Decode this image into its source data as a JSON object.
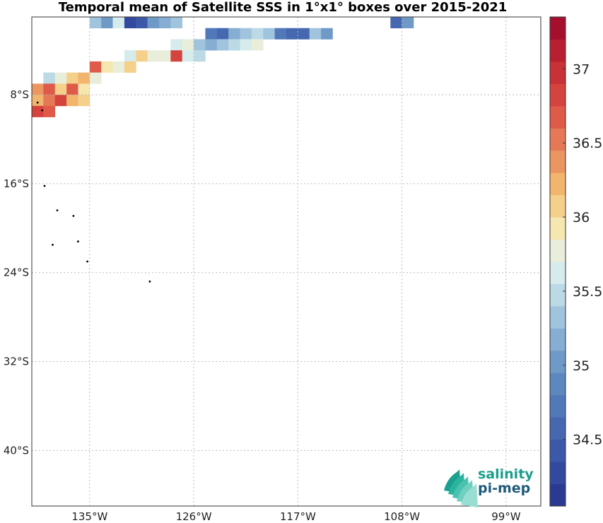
{
  "title": "Temporal mean of Satellite SSS in 1°x1° boxes over 2015-2021",
  "logo": {
    "line1": "salinity",
    "line2": "pi-mep"
  },
  "chart_data": {
    "type": "heatmap",
    "title": "Temporal mean of Satellite SSS in 1°x1° boxes over 2015-2021",
    "xlabel": "",
    "ylabel": "",
    "x_ticks": [
      "135°W",
      "126°W",
      "117°W",
      "108°W",
      "99°W"
    ],
    "y_ticks": [
      "8°S",
      "16°S",
      "24°S",
      "32°S",
      "40°S"
    ],
    "xlim": [
      -140,
      -96
    ],
    "ylim": [
      -45,
      -1
    ],
    "grid": true,
    "colorbar": {
      "ticks": [
        34.5,
        35,
        35.5,
        36,
        36.5,
        37
      ],
      "range": [
        34.05,
        37.35
      ],
      "levels": [
        "#2a3a93",
        "#3349a0",
        "#3c58a8",
        "#4668b1",
        "#5178b8",
        "#5d88bf",
        "#6f9ac7",
        "#86add2",
        "#a0c4dd",
        "#bcdae6",
        "#d6ebec",
        "#e9eedb",
        "#f6e6b0",
        "#f5d08a",
        "#f1b56e",
        "#eb9661",
        "#e57856",
        "#df5a48",
        "#d5433e",
        "#c83136",
        "#b81f30",
        "#a50f2d"
      ],
      "orientation": "vertical",
      "location": "right"
    },
    "cells": [
      [
        -134.5,
        -1.5,
        35.4
      ],
      [
        -133.5,
        -1.5,
        35.0
      ],
      [
        -132.5,
        -1.5,
        35.6
      ],
      [
        -131.5,
        -1.5,
        34.3
      ],
      [
        -130.5,
        -1.5,
        34.4
      ],
      [
        -129.5,
        -1.5,
        35.0
      ],
      [
        -128.5,
        -1.5,
        35.2
      ],
      [
        -127.5,
        -1.5,
        35.3
      ],
      [
        -124.5,
        -2.5,
        34.7
      ],
      [
        -123.5,
        -2.5,
        34.6
      ],
      [
        -122.5,
        -2.5,
        35.2
      ],
      [
        -121.5,
        -2.5,
        35.4
      ],
      [
        -120.5,
        -2.5,
        35.5
      ],
      [
        -119.5,
        -2.5,
        35.3
      ],
      [
        -118.5,
        -2.5,
        34.8
      ],
      [
        -117.5,
        -2.5,
        34.5
      ],
      [
        -116.5,
        -2.5,
        34.5
      ],
      [
        -115.5,
        -2.5,
        35.3
      ],
      [
        -114.5,
        -2.5,
        35.0
      ],
      [
        -127.5,
        -3.5,
        35.6
      ],
      [
        -126.5,
        -3.5,
        35.7
      ],
      [
        -125.5,
        -3.5,
        35.3
      ],
      [
        -124.5,
        -3.5,
        35.2
      ],
      [
        -123.5,
        -3.5,
        35.4
      ],
      [
        -122.5,
        -3.5,
        35.5
      ],
      [
        -121.5,
        -3.5,
        35.6
      ],
      [
        -120.5,
        -3.5,
        35.7
      ],
      [
        -131.5,
        -4.5,
        35.6
      ],
      [
        -130.5,
        -4.5,
        36.0
      ],
      [
        -129.5,
        -4.5,
        35.8
      ],
      [
        -128.5,
        -4.5,
        35.7
      ],
      [
        -127.5,
        -4.5,
        36.8
      ],
      [
        -126.5,
        -4.5,
        35.6
      ],
      [
        -125.5,
        -4.5,
        35.5
      ],
      [
        -134.5,
        -5.5,
        36.6
      ],
      [
        -133.5,
        -5.5,
        35.9
      ],
      [
        -132.5,
        -5.5,
        35.8
      ],
      [
        -131.5,
        -5.5,
        36.1
      ],
      [
        -138.5,
        -6.5,
        35.5
      ],
      [
        -137.5,
        -6.5,
        35.7
      ],
      [
        -136.5,
        -6.5,
        36.1
      ],
      [
        -135.5,
        -6.5,
        36.2
      ],
      [
        -134.5,
        -6.5,
        35.8
      ],
      [
        -139.5,
        -7.5,
        36.4
      ],
      [
        -138.5,
        -7.5,
        36.6
      ],
      [
        -137.5,
        -7.5,
        36.0
      ],
      [
        -136.5,
        -7.5,
        36.7
      ],
      [
        -135.5,
        -7.5,
        35.9
      ],
      [
        -139.5,
        -8.5,
        36.3
      ],
      [
        -138.5,
        -8.5,
        36.5
      ],
      [
        -137.5,
        -8.5,
        36.8
      ],
      [
        -136.5,
        -8.5,
        36.2
      ],
      [
        -135.5,
        -8.5,
        36.1
      ],
      [
        -139.5,
        -9.5,
        36.9
      ],
      [
        -138.5,
        -9.5,
        36.7
      ],
      [
        -108.5,
        -1.5,
        34.5
      ],
      [
        -107.5,
        -1.5,
        35.0
      ]
    ]
  }
}
